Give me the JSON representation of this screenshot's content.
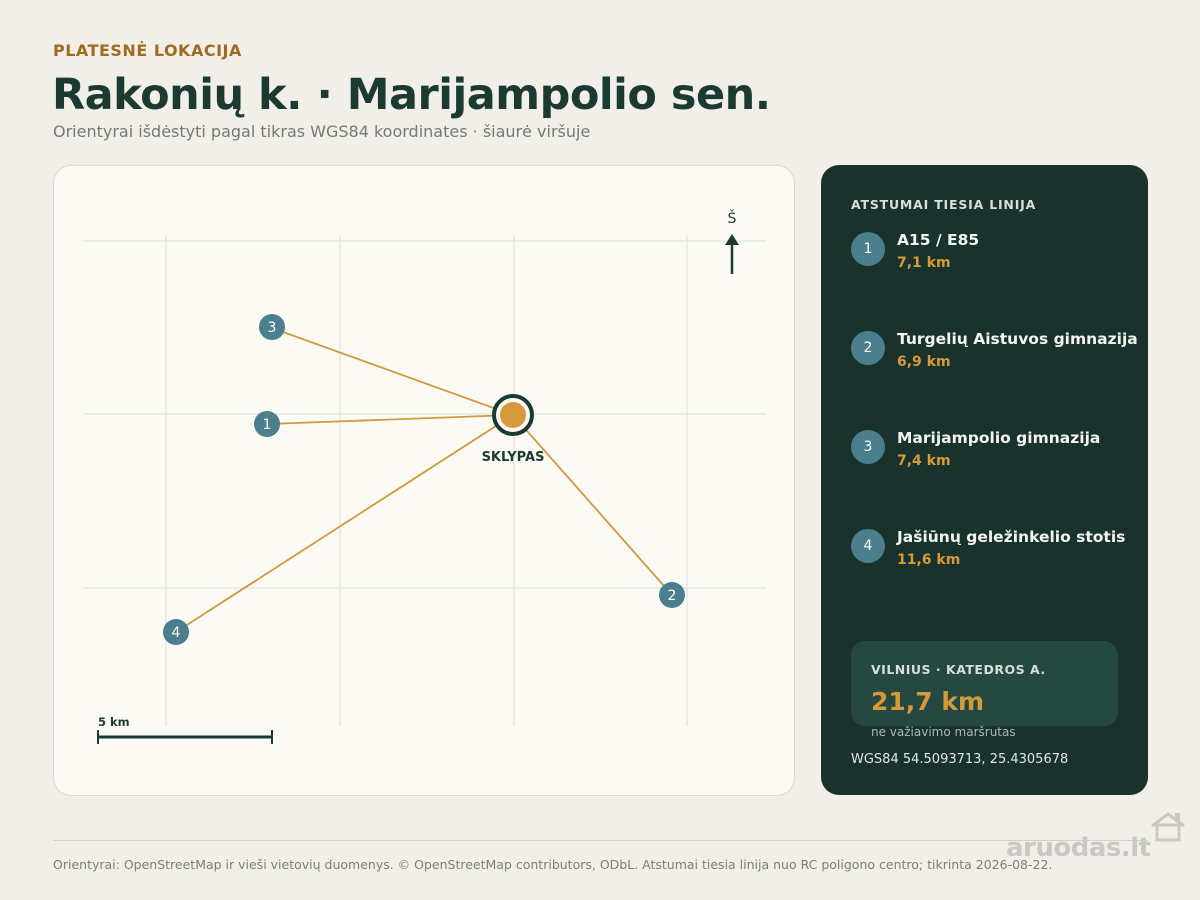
{
  "header": {
    "eyebrow": "PLATESNĖ LOKACIJA",
    "title": "Rakonių k. · Marijampolio sen.",
    "subtitle": "Orientyrai išdėstyti pagal tikras WGS84 koordinates · šiaurė viršuje"
  },
  "map": {
    "north_label": "Š",
    "center_label": "SKLYPAS",
    "scale_label": "5 km",
    "line_color": "#d19a3e",
    "marker_color": "#4b7f8e",
    "center_color": "#d79a3a",
    "markers": [
      {
        "num": "1"
      },
      {
        "num": "2"
      },
      {
        "num": "3"
      },
      {
        "num": "4"
      }
    ]
  },
  "sidebar": {
    "heading": "ATSTUMAI TIESIA LINIJA",
    "items": [
      {
        "num": "1",
        "name": "A15 / E85",
        "distance": "7,1 km"
      },
      {
        "num": "2",
        "name": "Turgelių Aistuvos gimnazija",
        "distance": "6,9 km"
      },
      {
        "num": "3",
        "name": "Marijampolio gimnazija",
        "distance": "7,4 km"
      },
      {
        "num": "4",
        "name": "Jašiūnų geležinkelio stotis",
        "distance": "11,6 km"
      }
    ],
    "vilnius": {
      "label": "VILNIUS · KATEDROS A.",
      "distance": "21,7 km",
      "note": "ne važiavimo maršrutas"
    },
    "coords": "WGS84  54.5093713, 25.4305678"
  },
  "footer": {
    "text": "Orientyrai: OpenStreetMap ir vieši vietovių duomenys. © OpenStreetMap contributors, ODbL. Atstumai tiesia linija nuo RC poligono centro; tikrinta 2026-08-22."
  },
  "watermark": {
    "text": "aruodas.lt"
  }
}
